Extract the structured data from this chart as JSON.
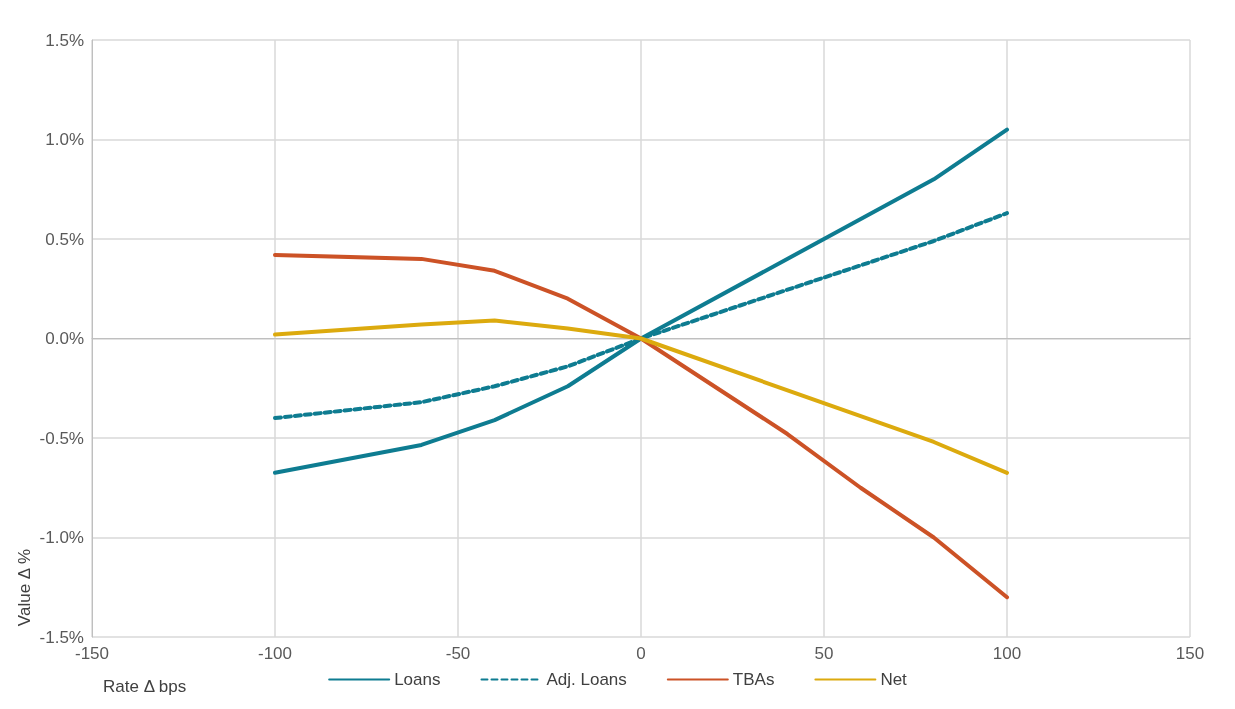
{
  "chart_data": {
    "type": "line",
    "xlabel": "Rate Δ bps",
    "ylabel": "Value Δ %",
    "xlim": [
      -150,
      150
    ],
    "xticks": [
      -150,
      -100,
      -50,
      0,
      50,
      100,
      150
    ],
    "ylim": [
      -1.5,
      1.5
    ],
    "yticks": [
      {
        "value": -1.5,
        "label": "-1.5%"
      },
      {
        "value": -1,
        "label": "-1.0%"
      },
      {
        "value": -0.5,
        "label": "-0.5%"
      },
      {
        "value": 0,
        "label": "0.0%"
      },
      {
        "value": 0.5,
        "label": "0.5%"
      },
      {
        "value": 1,
        "label": "1.0%"
      },
      {
        "value": 1.5,
        "label": "1.5%"
      }
    ],
    "grid": true,
    "legend": "bottom",
    "marker": "none",
    "series": [
      {
        "name": "Loans",
        "color": "#0e7c91",
        "line_style": "solid",
        "x": [
          -100,
          -60,
          -40,
          -20,
          0,
          80,
          100
        ],
        "values": [
          -0.675,
          -0.535,
          -0.41,
          -0.24,
          0,
          0.8,
          1.05
        ]
      },
      {
        "name": "Adj. Loans",
        "color": "#0e7c91",
        "line_style": "dashed",
        "x": [
          -100,
          -60,
          -40,
          -20,
          0,
          80,
          100
        ],
        "values": [
          -0.4,
          -0.32,
          -0.24,
          -0.14,
          0,
          0.49,
          0.63
        ]
      },
      {
        "name": "TBAs",
        "color": "#cc5226",
        "line_style": "solid",
        "x": [
          -100,
          -60,
          -40,
          -20,
          0,
          40,
          60,
          80,
          100
        ],
        "values": [
          0.42,
          0.4,
          0.34,
          0.2,
          0,
          -0.48,
          -0.75,
          -1.0,
          -1.3
        ]
      },
      {
        "name": "Net",
        "color": "#dcaa0e",
        "line_style": "solid",
        "x": [
          -100,
          -60,
          -40,
          -20,
          0,
          80,
          100
        ],
        "values": [
          0.02,
          0.07,
          0.09,
          0.05,
          0,
          -0.52,
          -0.675
        ]
      }
    ]
  }
}
